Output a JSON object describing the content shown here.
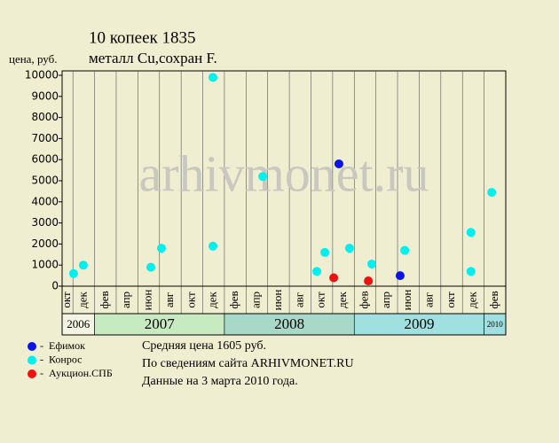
{
  "chart_data": {
    "type": "scatter",
    "title": "10 копеек 1835",
    "subtitle": "металл Cu,сохран F.",
    "y_label": "цена, руб.",
    "watermark": "arhivmonet.ru",
    "categories": [
      "окт",
      "дек",
      "фев",
      "апр",
      "июн",
      "авг",
      "окт",
      "дек",
      "фев",
      "апр",
      "июн",
      "авг",
      "окт",
      "дек",
      "фев",
      "апр",
      "июн",
      "авг",
      "окт",
      "дек",
      "фев"
    ],
    "years": [
      {
        "label": "2006",
        "from": 0,
        "to": 1,
        "color": "#f4f4e4"
      },
      {
        "label": "2007",
        "from": 2,
        "to": 7,
        "color": "#c8eac0"
      },
      {
        "label": "2008",
        "from": 8,
        "to": 13,
        "color": "#a8d8c8"
      },
      {
        "label": "2009",
        "from": 14,
        "to": 19,
        "color": "#a0e0e0"
      },
      {
        "label": "2010",
        "from": 20,
        "to": 20,
        "color": "#a0e0e0"
      }
    ],
    "xlim": [
      0.5,
      21
    ],
    "ylim": [
      0,
      10000
    ],
    "yticks": [
      0,
      1000,
      2000,
      3000,
      4000,
      5000,
      6000,
      7000,
      8000,
      9000,
      10000
    ],
    "series": [
      {
        "name": "Ефимок",
        "color": "#0a14e6",
        "x": [
          13.29,
          16.12
        ],
        "values": [
          5800,
          500
        ]
      },
      {
        "name": "Конрос",
        "color": "#00f0f0",
        "x": [
          1.03,
          1.48,
          4.6,
          5.09,
          7.47,
          7.47,
          9.77,
          12.27,
          12.64,
          13.78,
          14.81,
          16.33,
          19.39,
          19.39,
          20.35
        ],
        "values": [
          600,
          1000,
          900,
          1800,
          9900,
          1900,
          5200,
          700,
          1600,
          1800,
          1050,
          1700,
          2550,
          700,
          4450
        ]
      },
      {
        "name": "Аукцион.СПБ",
        "color": "#f01010",
        "x": [
          13.05,
          14.65
        ],
        "values": [
          400,
          250
        ]
      }
    ],
    "notes": [
      "Средняя цена 1605 руб.",
      "По  сведениям сайта ARHIVMONET.RU",
      "Данные на 3 марта 2010 года."
    ]
  }
}
